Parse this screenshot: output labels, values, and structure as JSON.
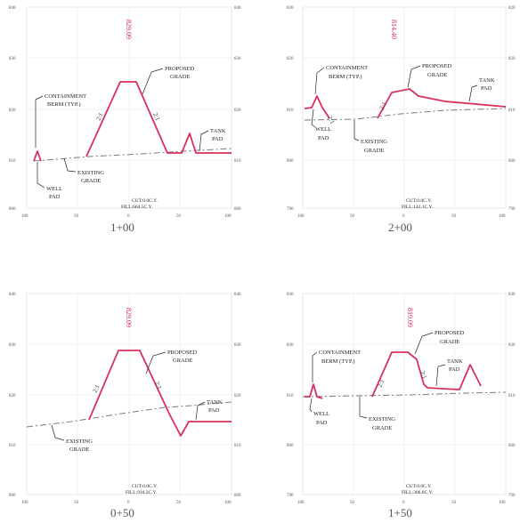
{
  "colors": {
    "proposed_grade": "#d8315b",
    "existing_grade": "#7a7a7a",
    "grid": "#e6e6e6"
  },
  "panels": [
    {
      "id": "1-00",
      "station": "1+00",
      "elevation_tag": "829.09",
      "y_labels": [
        "840",
        "830",
        "820",
        "810",
        "800"
      ],
      "x_labels": [
        "100",
        "50",
        "0",
        "50",
        "100"
      ],
      "callouts": {
        "containment": [
          "CONTAINMENT",
          "BERM (TYP.)"
        ],
        "well": [
          "WELL",
          "PAD"
        ],
        "existing": [
          "EXISTING",
          "GRADE"
        ],
        "proposed": [
          "PROPOSED",
          "GRADE"
        ],
        "tank": [
          "TANK",
          "PAD"
        ]
      },
      "slope_left": "2:1",
      "slope_right": "2:1",
      "cut": "CUT:0.0C.Y.",
      "fill": "FILL:664.5C.Y."
    },
    {
      "id": "2-00",
      "station": "2+00",
      "elevation_tag": "814.40",
      "y_labels": [
        "820",
        "810",
        "800",
        "790"
      ],
      "x_labels": [
        "100",
        "50",
        "0",
        "50",
        "100"
      ],
      "callouts": {
        "containment": [
          "CONTAINMENT",
          "BERM (TYP.)"
        ],
        "well": [
          "WELL",
          "PAD"
        ],
        "existing": [
          "EXISTING",
          "GRADE"
        ],
        "proposed": [
          "PROPOSED",
          "GRADE"
        ],
        "tank": [
          "TANK",
          "PAD"
        ]
      },
      "slope_left": "2:1",
      "slope_right": "2:1",
      "cut": "CUT:0.0C.Y.",
      "fill": "FILL:142.1C.Y."
    },
    {
      "id": "0-50",
      "station": "0+50",
      "elevation_tag": "829.09",
      "y_labels": [
        "840",
        "830",
        "820",
        "810",
        "800"
      ],
      "x_labels": [
        "100",
        "50",
        "0",
        "50",
        "100"
      ],
      "callouts": {
        "existing": [
          "EXISTING",
          "GRADE"
        ],
        "proposed": [
          "PROPOSED",
          "GRADE"
        ],
        "tank": [
          "TANK",
          "PAD"
        ]
      },
      "slope_left": "2:1",
      "slope_right": "2:1",
      "cut": "CUT:0.0C.Y.",
      "fill": "FILL:916.2C.Y."
    },
    {
      "id": "1-50",
      "station": "1+50",
      "elevation_tag": "819.09",
      "y_labels": [
        "830",
        "820",
        "810",
        "800",
        "790"
      ],
      "x_labels": [
        "100",
        "50",
        "0",
        "50",
        "100"
      ],
      "callouts": {
        "containment": [
          "CONTAINMENT",
          "BERM (TYP.)"
        ],
        "well": [
          "WELL",
          "PAD"
        ],
        "existing": [
          "EXISTING",
          "GRADE"
        ],
        "proposed": [
          "PROPOSED",
          "GRADE"
        ],
        "tank": [
          "TANK",
          "PAD"
        ]
      },
      "slope_left": "2:1",
      "slope_right": "2:1",
      "cut": "CUT:0.0C.Y.",
      "fill": "FILL:306.6C.Y."
    }
  ]
}
